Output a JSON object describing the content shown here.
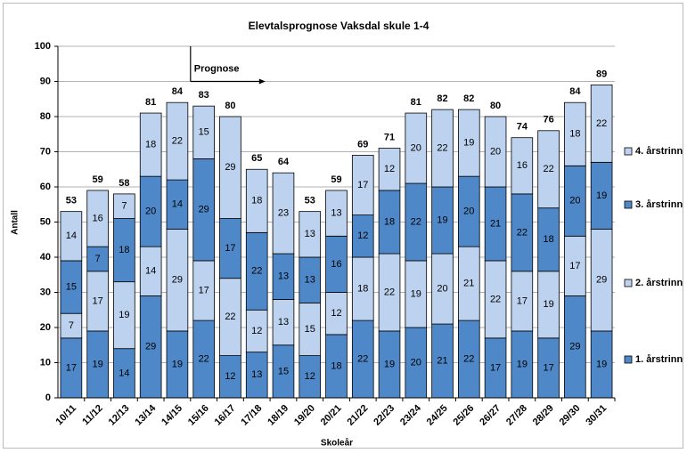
{
  "chart_data": {
    "type": "stacked_bar",
    "title": "Elevtalsprognose Vaksdal skule 1-4",
    "x_label": "Skoleår",
    "y_label": "Antall",
    "annotation": "Prognose",
    "categories": [
      "10/11",
      "11/12",
      "12/13",
      "13/14",
      "14/15",
      "15/16",
      "16/17",
      "17/18",
      "18/19",
      "19/20",
      "20/21",
      "21/22",
      "22/23",
      "23/24",
      "24/25",
      "25/26",
      "26/27",
      "27/28",
      "28/29",
      "29/30",
      "30/31"
    ],
    "series": [
      {
        "name": "1. årstrinn",
        "color": "#4f88c9",
        "values": [
          17,
          19,
          14,
          29,
          19,
          22,
          12,
          13,
          15,
          12,
          18,
          22,
          19,
          20,
          21,
          22,
          17,
          19,
          17,
          29,
          19
        ]
      },
      {
        "name": "2. årstrinn",
        "color": "#bcd2ee",
        "values": [
          7,
          17,
          19,
          14,
          29,
          17,
          22,
          12,
          13,
          15,
          12,
          18,
          22,
          19,
          20,
          21,
          22,
          17,
          19,
          17,
          29
        ]
      },
      {
        "name": "3. årstrinn",
        "color": "#4f88c9",
        "values": [
          15,
          7,
          18,
          20,
          14,
          29,
          17,
          22,
          13,
          13,
          16,
          12,
          18,
          22,
          19,
          20,
          21,
          22,
          18,
          20,
          19
        ]
      },
      {
        "name": "4. årstrinn",
        "color": "#bcd2ee",
        "values": [
          14,
          16,
          7,
          18,
          22,
          15,
          29,
          18,
          23,
          13,
          13,
          17,
          12,
          20,
          22,
          19,
          20,
          16,
          22,
          18,
          22
        ]
      }
    ],
    "totals": [
      53,
      59,
      58,
      81,
      84,
      83,
      80,
      65,
      64,
      53,
      59,
      69,
      71,
      81,
      82,
      82,
      80,
      74,
      76,
      84,
      89
    ],
    "ylim": [
      0,
      100
    ],
    "yticks": [
      0,
      10,
      20,
      30,
      40,
      50,
      60,
      70,
      80,
      90,
      100
    ],
    "grid": true
  }
}
